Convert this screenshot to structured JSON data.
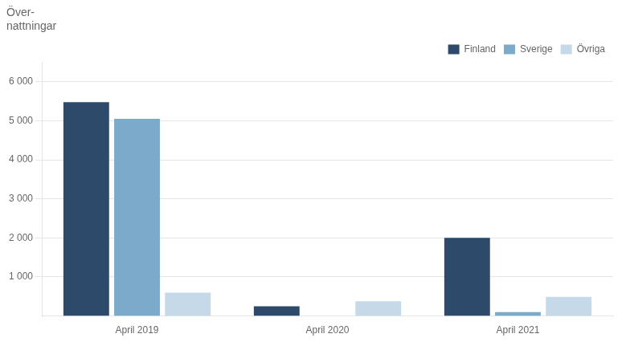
{
  "chart_data": {
    "type": "bar",
    "title": "Över-\nnattningar",
    "categories": [
      "April 2019",
      "April 2020",
      "April 2021"
    ],
    "series": [
      {
        "name": "Finland",
        "color": "#2e4a6b",
        "values": [
          5480,
          250,
          2000
        ]
      },
      {
        "name": "Sverige",
        "color": "#7baacb",
        "values": [
          5050,
          0,
          100
        ]
      },
      {
        "name": "Övriga",
        "color": "#c5d9e8",
        "values": [
          600,
          380,
          490
        ]
      }
    ],
    "ylim": [
      0,
      6500
    ],
    "yticks": [
      {
        "value": 1000,
        "label": "1 000"
      },
      {
        "value": 2000,
        "label": "2 000"
      },
      {
        "value": 3000,
        "label": "3 000"
      },
      {
        "value": 4000,
        "label": "4 000"
      },
      {
        "value": 5000,
        "label": "5 000"
      },
      {
        "value": 6000,
        "label": "6 000"
      }
    ],
    "grid": true,
    "legend": "upper right"
  }
}
